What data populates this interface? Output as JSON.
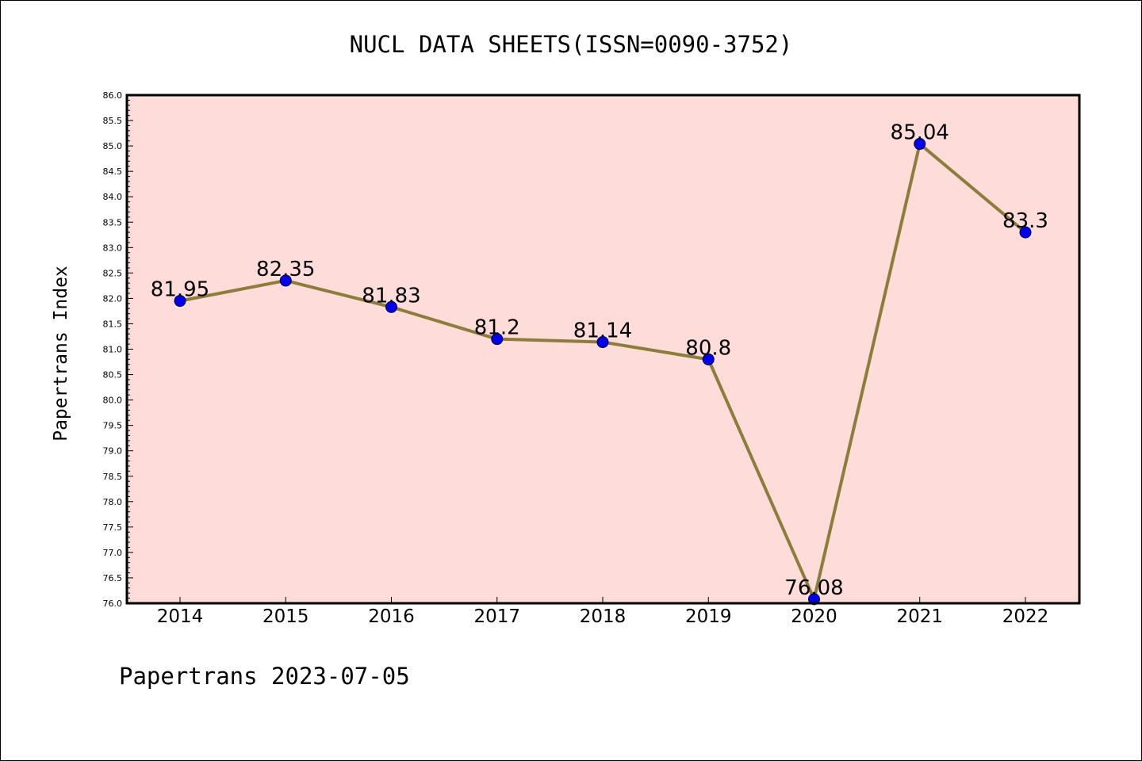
{
  "chart_data": {
    "type": "line",
    "title": "NUCL DATA SHEETS(ISSN=0090-3752)",
    "xlabel": "",
    "ylabel": "Papertrans Index",
    "categories": [
      "2014",
      "2015",
      "2016",
      "2017",
      "2018",
      "2019",
      "2020",
      "2021",
      "2022"
    ],
    "values": [
      81.95,
      82.35,
      81.83,
      81.2,
      81.14,
      80.8,
      76.08,
      85.04,
      83.3
    ],
    "data_labels": [
      "81.95",
      "82.35",
      "81.83",
      "81.2",
      "81.14",
      "80.8",
      "76.08",
      "85.04",
      "83.3"
    ],
    "ylim": [
      76.0,
      86.0
    ],
    "ytick_step": 0.5,
    "grid": false,
    "legend": "none",
    "colors": {
      "plot_background": "#fddcda",
      "line": "#8b7d3a",
      "marker": "#0000ee"
    }
  },
  "footer": {
    "text": "Papertrans 2023-07-05"
  }
}
